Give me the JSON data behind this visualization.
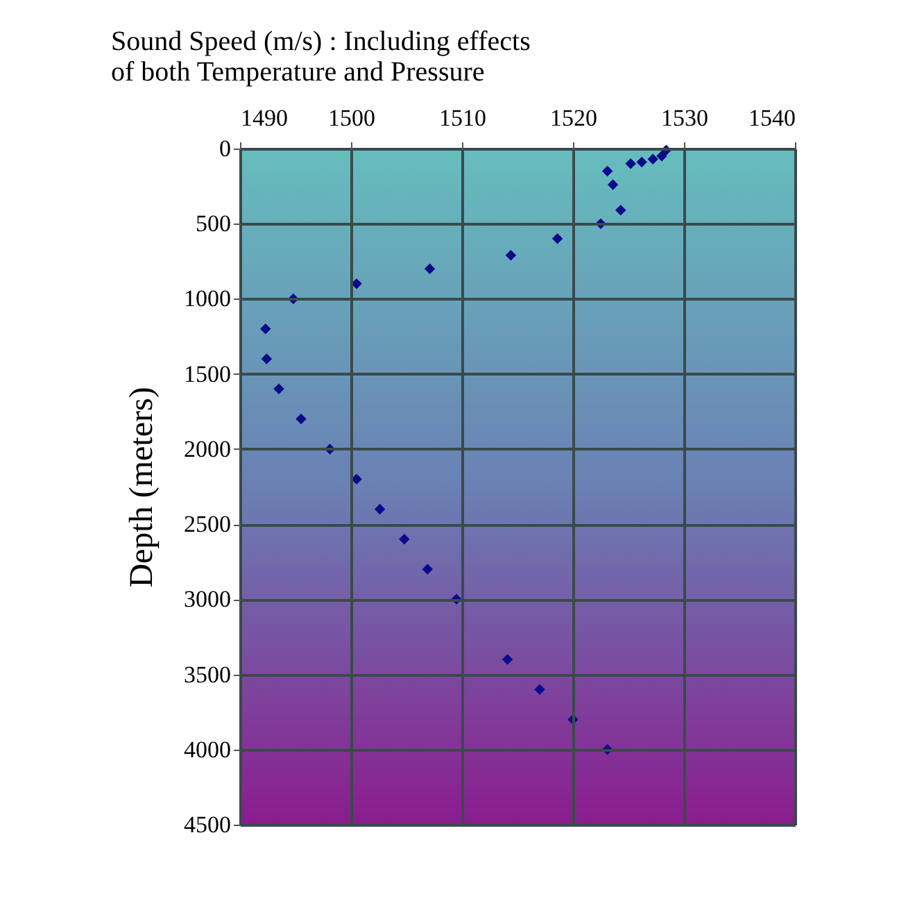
{
  "chart_data": {
    "type": "scatter",
    "title": "Sound Speed (m/s) : Including effects of both Temperature and Pressure",
    "ylabel": "Depth (meters)",
    "marker": "diamond",
    "grid": true,
    "x": [
      1528.4,
      1528,
      1527.2,
      1526.2,
      1525.2,
      1523.1,
      1523.6,
      1524.3,
      1522.5,
      1518.6,
      1514.4,
      1507.1,
      1500.5,
      1494.8,
      1492.3,
      1492.4,
      1493.5,
      1495.5,
      1498.1,
      1500.5,
      1502.6,
      1504.8,
      1506.9,
      1509.5,
      1514.1,
      1517,
      1520,
      1523.1
    ],
    "series": [
      {
        "color": "#0a0a8c",
        "values": [
          10,
          50,
          70,
          90,
          100,
          150,
          240,
          410,
          500,
          600,
          710,
          800,
          900,
          1000,
          1200,
          1400,
          1600,
          1800,
          2000,
          2200,
          2400,
          2600,
          2800,
          3000,
          3400,
          3600,
          3800,
          4000
        ]
      }
    ],
    "xlim": [
      1490,
      1540
    ],
    "xticks": [
      1490,
      1500,
      1510,
      1520,
      1530,
      1540
    ],
    "ylim": [
      4500,
      0
    ],
    "yticks": [
      0,
      500,
      1000,
      1500,
      2000,
      2500,
      3000,
      3500,
      4000,
      4500
    ]
  }
}
